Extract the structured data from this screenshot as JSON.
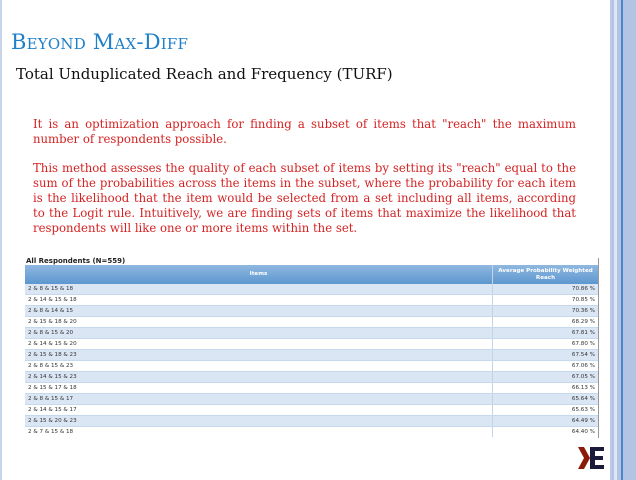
{
  "slide": {
    "title": "Beyond Max-Diff",
    "subtitle": "Total Unduplicated Reach and Frequency (TURF)",
    "paragraphs": [
      "It is an optimization approach for finding a subset of items that \"reach\" the maximum number of respondents possible.",
      "This method assesses the quality of each subset of items by setting its \"reach\" equal to the sum of the probabilities across the items in the subset, where the probability for each item is the likelihood that the item would be selected from a set including all items, according to the Logit rule. Intuitively, we are finding sets of items that maximize the likelihood that respondents will like one or more items within the set."
    ],
    "logo_text": "KE"
  },
  "table": {
    "caption": "All Respondents (N=559)",
    "headers": [
      "Items",
      "Average Probability Weighted Reach"
    ],
    "rows": [
      [
        "2 & 8 & 15 & 18",
        "70.86 %"
      ],
      [
        "2 & 14 & 15 & 18",
        "70.85 %"
      ],
      [
        "2 & 8 & 14 & 15",
        "70.36 %"
      ],
      [
        "2 & 15 & 18 & 20",
        "68.29 %"
      ],
      [
        "2 & 8 & 15 & 20",
        "67.81 %"
      ],
      [
        "2 & 14 & 15 & 20",
        "67.80 %"
      ],
      [
        "2 & 15 & 18 & 23",
        "67.54 %"
      ],
      [
        "2 & 8 & 15 & 23",
        "67.06 %"
      ],
      [
        "2 & 14 & 15 & 23",
        "67.05 %"
      ],
      [
        "2 & 15 & 17 & 18",
        "66.13 %"
      ],
      [
        "2 & 8 & 15 & 17",
        "65.64 %"
      ],
      [
        "2 & 14 & 15 & 17",
        "65.63 %"
      ],
      [
        "2 & 15 & 20 & 23",
        "64.49 %"
      ],
      [
        "2 & 7 & 15 & 18",
        "64.40 %"
      ]
    ]
  },
  "colors": {
    "title": "#1f7fc8",
    "body_text": "#d42222",
    "header": "#5d97cf",
    "logo_left": "#8b1a0a",
    "logo_right": "#1a1a3a"
  }
}
